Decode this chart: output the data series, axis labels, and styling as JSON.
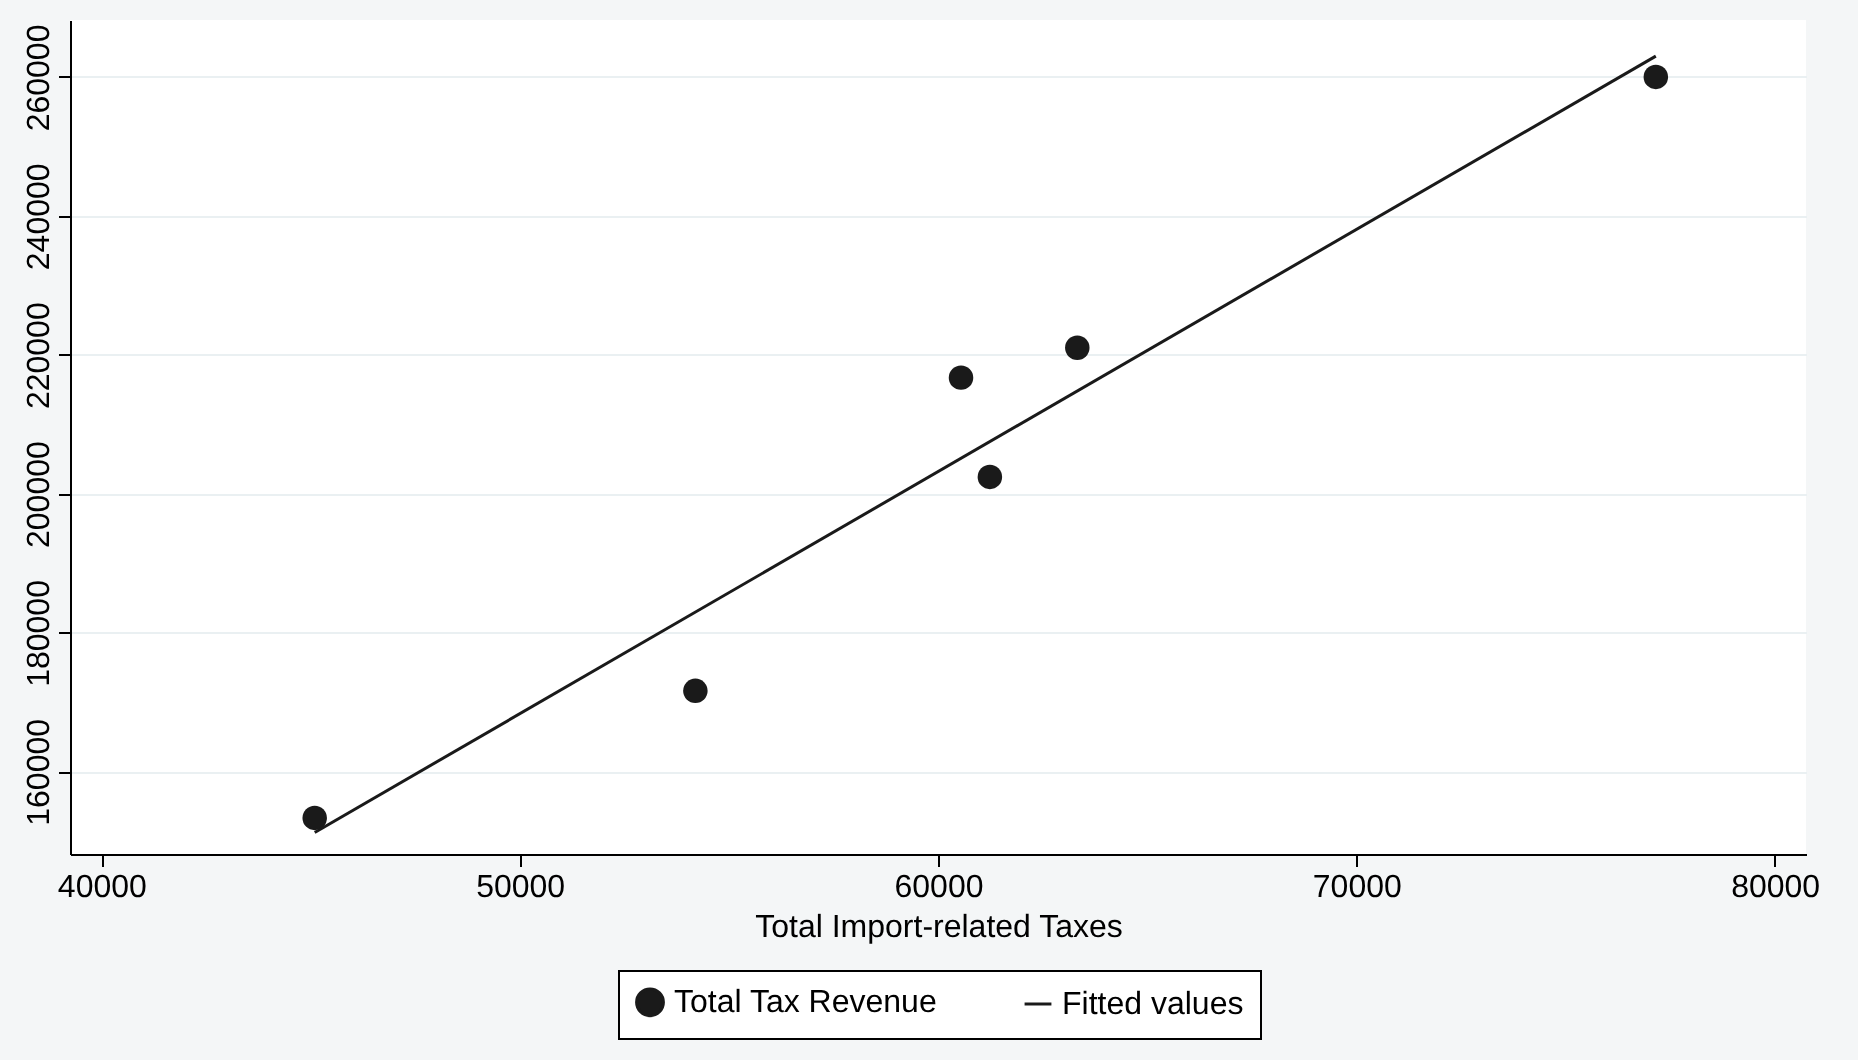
{
  "chart_data": {
    "type": "scatter",
    "xlabel": "Total Import-related Taxes",
    "xlim": [
      39250,
      80750
    ],
    "xticks": [
      40000,
      50000,
      60000,
      70000,
      80000
    ],
    "ylim": [
      148100,
      268200
    ],
    "yticks": [
      160000,
      180000,
      200000,
      220000,
      240000,
      260000
    ],
    "grid": "y",
    "legend": "bottom",
    "series": [
      {
        "name": "Total Tax Revenue",
        "marker": "circle",
        "color": "#1a1a1a",
        "x": [
          45100,
          54200,
          60550,
          61240,
          63330,
          77160
        ],
        "values": [
          153300,
          171600,
          216700,
          202400,
          221000,
          260000
        ]
      },
      {
        "name": "Fitted values",
        "type": "line",
        "color": "#1a1a1a",
        "x": [
          45100,
          77160
        ],
        "values": [
          151200,
          263000
        ]
      }
    ]
  }
}
